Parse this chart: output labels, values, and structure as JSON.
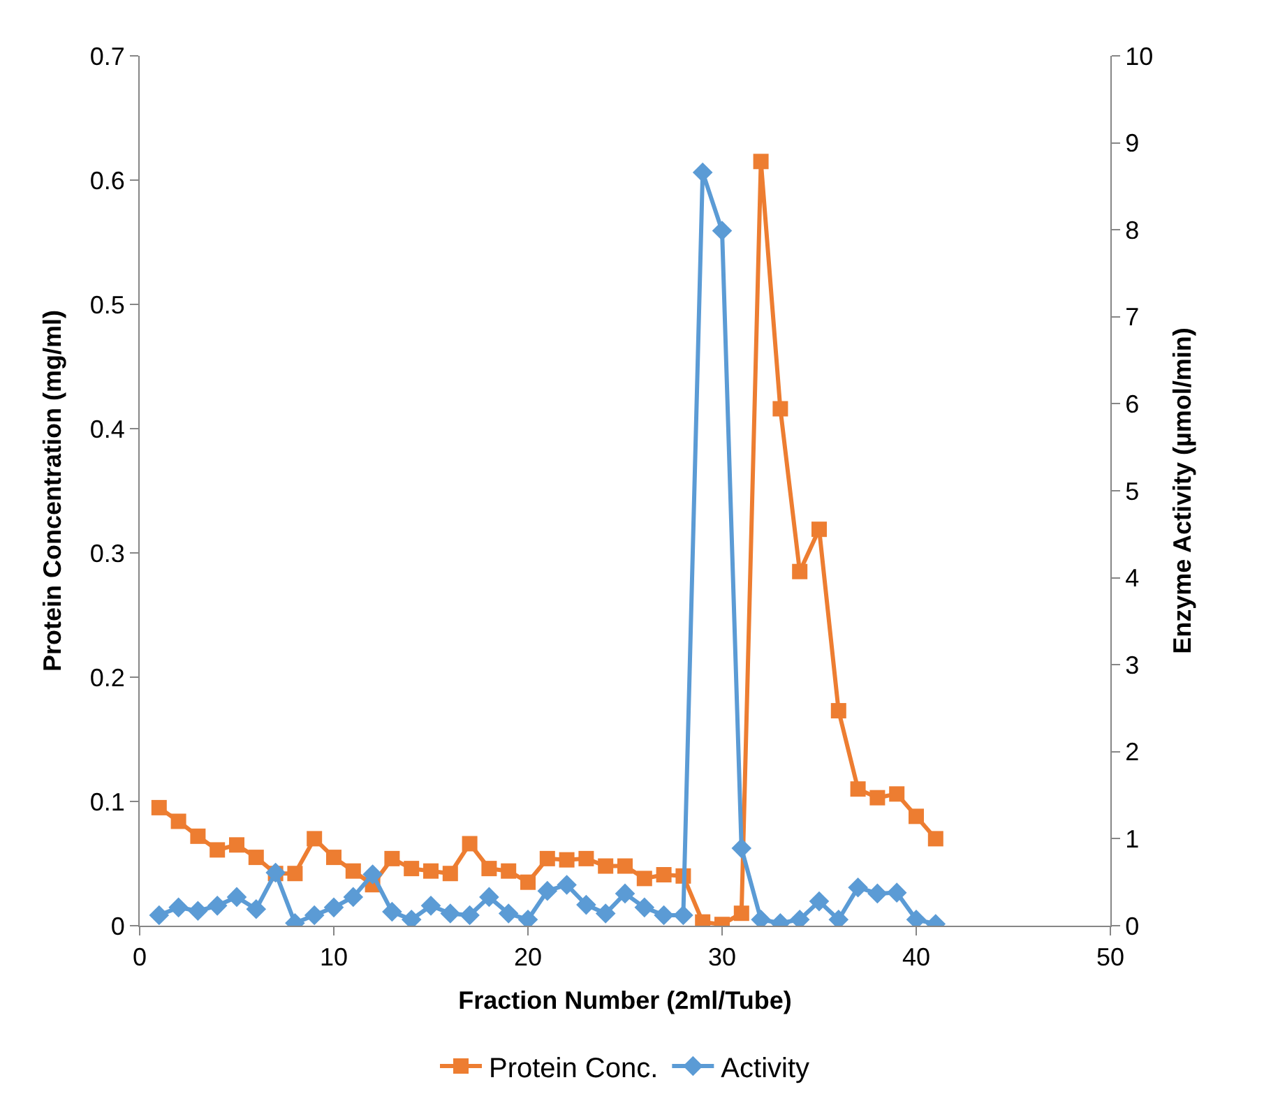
{
  "chart_data": {
    "type": "line",
    "xlabel": "Fraction Number (2ml/Tube)",
    "ylabel": "Protein Concentration (mg/ml)",
    "y2label": "Enzyme Activity (µmol/min)",
    "x": [
      1,
      2,
      3,
      4,
      5,
      6,
      7,
      8,
      9,
      10,
      11,
      12,
      13,
      14,
      15,
      16,
      17,
      18,
      19,
      20,
      21,
      22,
      23,
      24,
      25,
      26,
      27,
      28,
      29,
      30,
      31,
      32,
      33,
      34,
      35,
      36,
      37,
      38,
      39,
      40,
      41
    ],
    "xlim": [
      0,
      50
    ],
    "xticks": [
      0,
      10,
      20,
      30,
      40,
      50
    ],
    "ylim": [
      0,
      0.7
    ],
    "yticks": [
      0,
      0.1,
      0.2,
      0.3,
      0.4,
      0.5,
      0.6,
      0.7
    ],
    "y2lim": [
      0,
      10
    ],
    "y2ticks": [
      0,
      1,
      2,
      3,
      4,
      5,
      6,
      7,
      8,
      9,
      10
    ],
    "legend": "bottom",
    "series": [
      {
        "name": "Protein Conc.",
        "color": "#ed7d31",
        "marker": "square",
        "values": [
          0.095,
          0.084,
          0.072,
          0.061,
          0.065,
          0.055,
          0.042,
          0.042,
          0.07,
          0.055,
          0.044,
          0.033,
          0.054,
          0.046,
          0.044,
          0.042,
          0.066,
          0.046,
          0.044,
          0.035,
          0.054,
          0.053,
          0.054,
          0.048,
          0.048,
          0.038,
          0.041,
          0.04,
          0.003,
          0.001,
          0.01,
          0.615,
          0.416,
          0.285,
          0.319,
          0.173,
          0.11,
          0.103,
          0.106,
          0.088,
          0.07
        ]
      },
      {
        "name": "Activity",
        "color": "#5b9bd5",
        "marker": "diamond",
        "axis": "y2",
        "values": [
          0.12,
          0.21,
          0.17,
          0.23,
          0.33,
          0.19,
          0.61,
          0.03,
          0.12,
          0.21,
          0.33,
          0.59,
          0.16,
          0.07,
          0.23,
          0.14,
          0.12,
          0.33,
          0.14,
          0.07,
          0.4,
          0.47,
          0.24,
          0.14,
          0.37,
          0.21,
          0.12,
          0.12,
          8.66,
          7.99,
          0.89,
          0.07,
          0.03,
          0.07,
          0.28,
          0.07,
          0.44,
          0.37,
          0.38,
          0.07,
          0.02
        ]
      }
    ]
  }
}
